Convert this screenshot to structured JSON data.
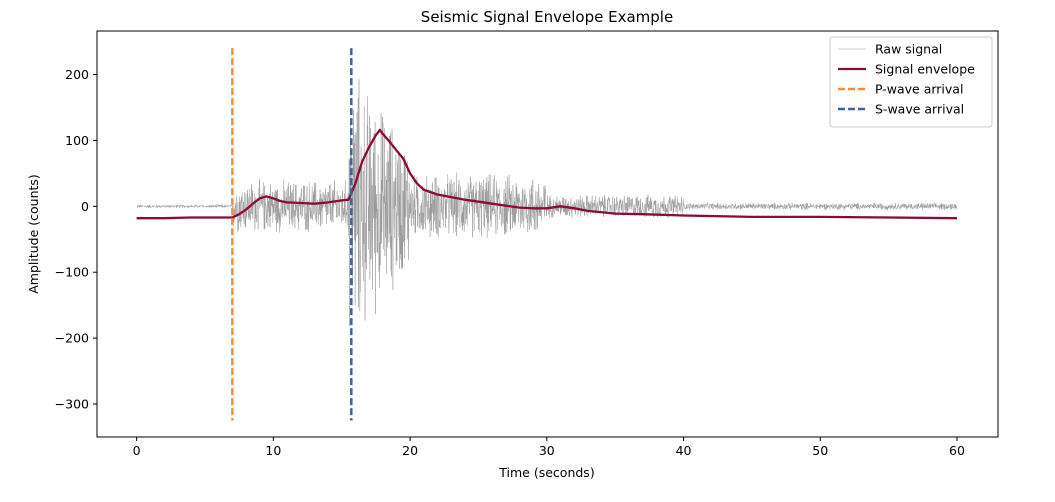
{
  "chart_data": {
    "type": "line",
    "title": "Seismic Signal Envelope Example",
    "xlabel": "Time (seconds)",
    "ylabel": "Amplitude (counts)",
    "xlim": [
      -2.9,
      63.0
    ],
    "ylim": [
      -350,
      266
    ],
    "xticks": [
      0,
      10,
      20,
      30,
      40,
      50,
      60
    ],
    "yticks": [
      -300,
      -200,
      -100,
      0,
      100,
      200
    ],
    "xtick_labels": [
      "0",
      "10",
      "20",
      "30",
      "40",
      "50",
      "60"
    ],
    "ytick_labels": [
      "−300",
      "−200",
      "−100",
      "0",
      "100",
      "200"
    ],
    "grid": false,
    "legend_position": "top-right",
    "colors": {
      "raw": "#999999",
      "envelope": "#8b0a3a",
      "p_wave": "#f28e3b",
      "s_wave": "#3a64a0"
    },
    "series": [
      {
        "name": "Raw signal",
        "kind": "raw",
        "segments": [
          {
            "t": [
              0,
              7
            ],
            "amp": 3
          },
          {
            "t": [
              7,
              15.5
            ],
            "amp": 45
          },
          {
            "t": [
              15.5,
              20
            ],
            "amp": 240
          },
          {
            "t": [
              20,
              30
            ],
            "amp": 55
          },
          {
            "t": [
              30,
              40
            ],
            "amp": 20
          },
          {
            "t": [
              40,
              60
            ],
            "amp": 6
          }
        ]
      },
      {
        "name": "Signal envelope",
        "kind": "envelope",
        "x": [
          0,
          2,
          4,
          5,
          7,
          7.5,
          8,
          8.5,
          9,
          9.5,
          10,
          10.5,
          11,
          12,
          13,
          14,
          15,
          15.5,
          16,
          16.5,
          17,
          17.5,
          17.8,
          18,
          18.5,
          19,
          19.5,
          20,
          20.5,
          21,
          22,
          23,
          24,
          25,
          26,
          27,
          28,
          29,
          30,
          31,
          32,
          33,
          35,
          37,
          40,
          45,
          50,
          55,
          60
        ],
        "y": [
          -18,
          -18,
          -17,
          -17,
          -17,
          -12,
          -5,
          4,
          12,
          15,
          12,
          8,
          6,
          5,
          4,
          6,
          9,
          10,
          35,
          68,
          90,
          108,
          116,
          110,
          98,
          85,
          72,
          50,
          35,
          25,
          18,
          14,
          10,
          7,
          4,
          1,
          -2,
          -3,
          -3,
          0,
          -3,
          -7,
          -11,
          -12,
          -14,
          -16,
          -16,
          -17,
          -18
        ]
      },
      {
        "name": "P-wave arrival",
        "kind": "vline",
        "x": 7.0,
        "y_range": [
          -325,
          240
        ]
      },
      {
        "name": "S-wave arrival",
        "kind": "vline",
        "x": 15.7,
        "y_range": [
          -325,
          240
        ]
      }
    ]
  }
}
